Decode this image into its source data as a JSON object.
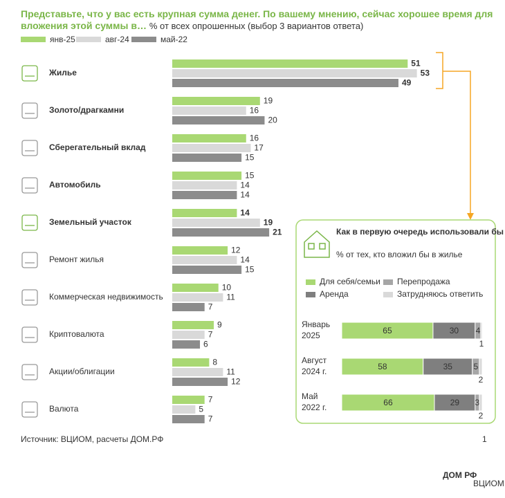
{
  "chart_data": [
    {
      "type": "bar",
      "orientation": "horizontal",
      "title": "Представьте, что у вас есть крупная сумма денег. По вашему мнению, сейчас хорошее время для вложения этой суммы в…",
      "subtitle": "% от всех опрошенных (выбор 3 вариантов ответа)",
      "categories": [
        "Жилье",
        "Золото/драгкамни",
        "Сберегательный вклад",
        "Автомобиль",
        "Земельный участок",
        "Ремонт жилья",
        "Коммерческая недвижимость",
        "Криптовалюта",
        "Акции/облигации",
        "Валюта"
      ],
      "series": [
        {
          "name": "янв-25",
          "color": "#a9d873",
          "values": [
            51,
            19,
            16,
            15,
            14,
            12,
            10,
            9,
            8,
            7
          ]
        },
        {
          "name": "авг-24",
          "color": "#d9d9d9",
          "values": [
            53,
            16,
            17,
            14,
            19,
            14,
            11,
            7,
            11,
            5
          ]
        },
        {
          "name": "май-22",
          "color": "#8c8c8c",
          "values": [
            49,
            20,
            15,
            14,
            21,
            15,
            7,
            6,
            12,
            7
          ]
        }
      ],
      "xlim": [
        0,
        55
      ]
    },
    {
      "type": "stacked_bar",
      "orientation": "horizontal",
      "title": "Как в первую очередь использовали бы жилье,",
      "subtitle": "% от тех, кто вложил бы в жилье",
      "categories": [
        "Январь 2025",
        "Август 2024 г.",
        "Май 2022 г."
      ],
      "series": [
        {
          "name": "Для себя/семьи",
          "color": "#a9d873",
          "values": [
            65,
            58,
            66
          ]
        },
        {
          "name": "Аренда",
          "color": "#7f7f7f",
          "values": [
            30,
            35,
            29
          ]
        },
        {
          "name": "Перепродажа",
          "color": "#a6a6a6",
          "values": [
            4,
            5,
            3
          ]
        },
        {
          "name": "Затрудняюсь ответить",
          "color": "#d9d9d9",
          "values": [
            1,
            2,
            2
          ]
        }
      ],
      "xlim": [
        0,
        100
      ]
    }
  ],
  "footer": {
    "source": "Источник: ВЦИОМ, расчеты ДОМ.РФ",
    "page": "1"
  },
  "logos": [
    "ДОМ РФ",
    "ВЦИОМ"
  ]
}
